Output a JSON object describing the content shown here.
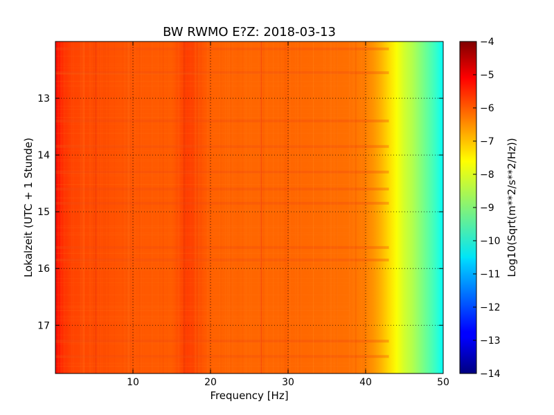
{
  "chart_data": {
    "type": "heatmap",
    "title": "BW RWMO E?Z: 2018-03-13",
    "xlabel": "Frequency [Hz]",
    "ylabel": "Lokalzeit (UTC + 1 Stunde)",
    "xlim": [
      0,
      50
    ],
    "ylim": [
      12.0,
      17.85
    ],
    "x_ticks": [
      10,
      20,
      30,
      40,
      50
    ],
    "y_ticks": [
      13,
      14,
      15,
      16,
      17
    ],
    "grid": true,
    "colormap": "jet",
    "colorbar": {
      "label": "Log10(Sqrt(m**2/s**2/Hz))",
      "range": [
        -14,
        -4
      ],
      "ticks": [
        -4,
        -5,
        -6,
        -7,
        -8,
        -9,
        -10,
        -11,
        -12,
        -13,
        -14
      ]
    },
    "spectrum_profile": {
      "frequency_hz": [
        0,
        0.5,
        1,
        2,
        5,
        10,
        15,
        17,
        20,
        25,
        30,
        35,
        38,
        40,
        41,
        42,
        43,
        44,
        45,
        46,
        47,
        48,
        49,
        50
      ],
      "log10_amplitude": [
        -5.2,
        -5.5,
        -5.7,
        -5.9,
        -6.0,
        -6.1,
        -6.15,
        -5.85,
        -6.2,
        -6.25,
        -6.25,
        -6.3,
        -6.35,
        -6.5,
        -6.7,
        -7.0,
        -7.4,
        -7.8,
        -8.2,
        -8.5,
        -8.9,
        -9.3,
        -9.7,
        -10.2
      ]
    },
    "vertical_features_hz": [
      5.2,
      16.6,
      26.5
    ],
    "horizontal_bands_h": [
      12.13,
      12.55,
      13.4,
      13.85,
      14.3,
      14.6,
      14.85,
      15.63,
      15.85,
      17.28,
      17.55
    ]
  }
}
